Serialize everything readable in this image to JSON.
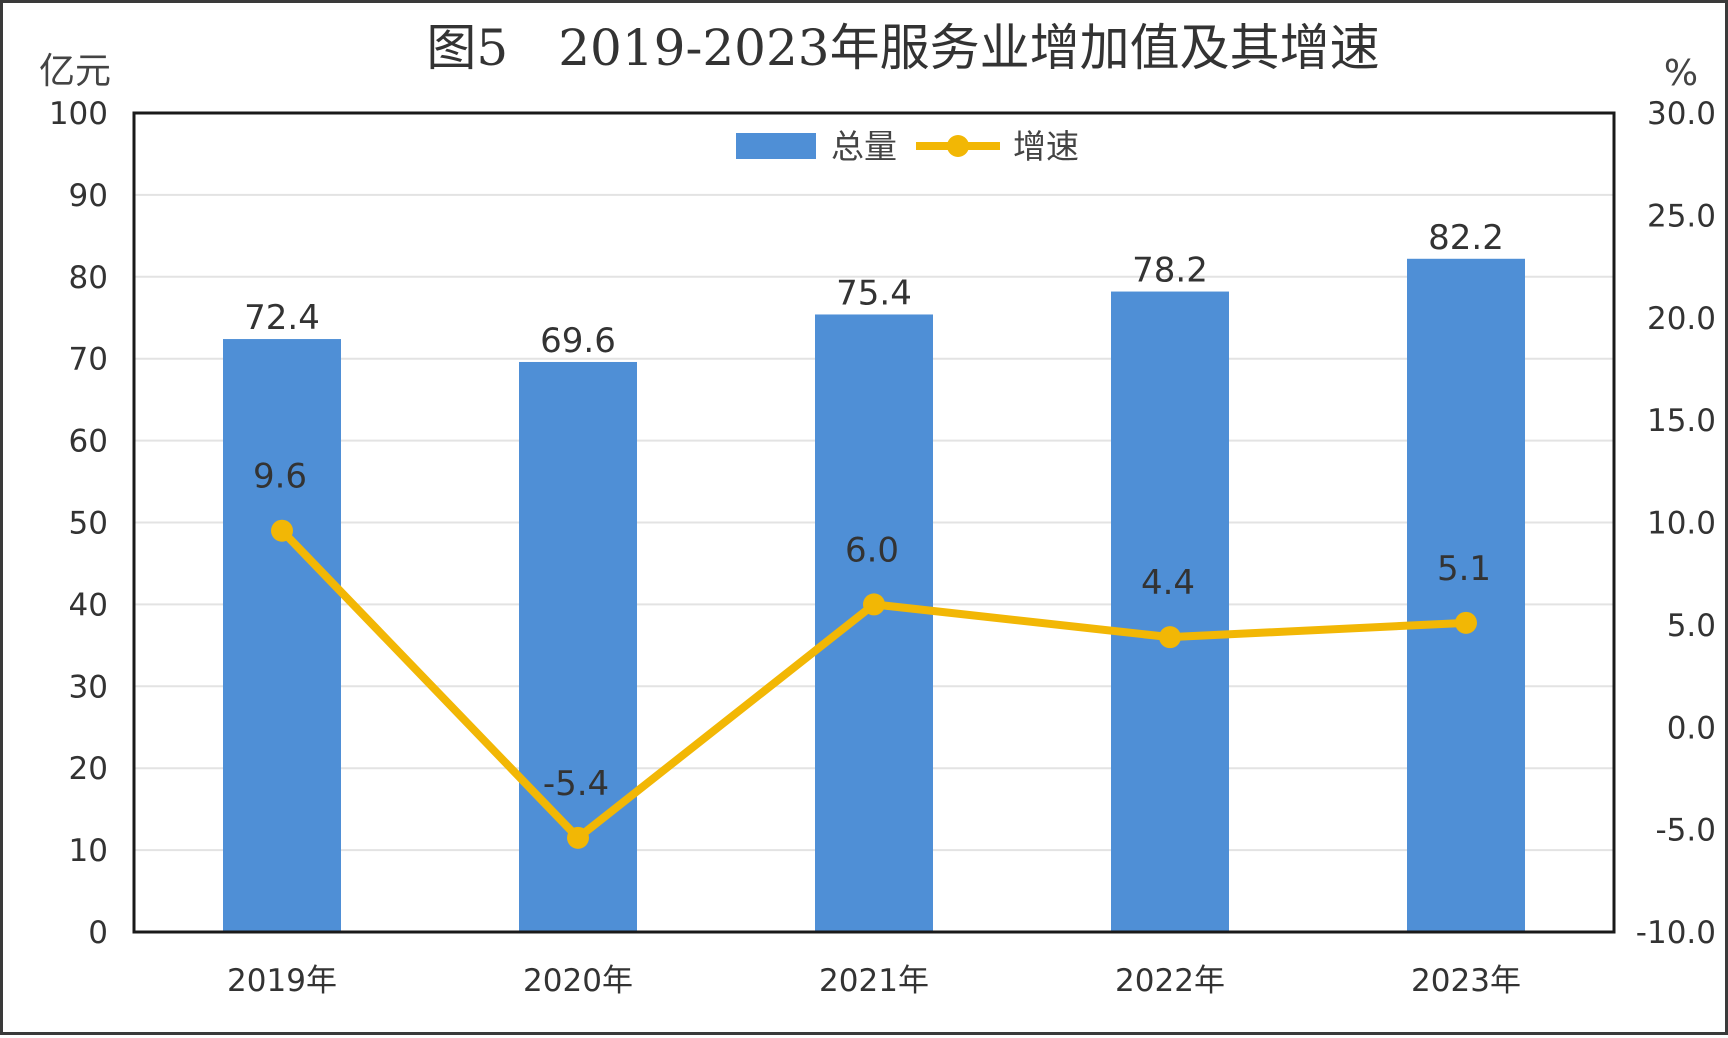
{
  "chart_data": {
    "type": "bar",
    "title": "图5　2019-2023年服务业增加值及其增速",
    "y_unit_left": "亿元",
    "y_unit_right": "%",
    "categories": [
      "2019年",
      "2020年",
      "2021年",
      "2022年",
      "2023年"
    ],
    "series": [
      {
        "name": "总量",
        "type": "bar",
        "axis": "left",
        "color": "#4F8FD6",
        "values": [
          72.4,
          69.6,
          75.4,
          78.2,
          82.2
        ],
        "labels": [
          "72.4",
          "69.6",
          "75.4",
          "78.2",
          "82.2"
        ]
      },
      {
        "name": "增速",
        "type": "line",
        "axis": "right",
        "color": "#F2B705",
        "values": [
          9.6,
          -5.4,
          6.0,
          4.4,
          5.1
        ],
        "labels": [
          "9.6",
          "-5.4",
          "6.0",
          "4.4",
          "5.1"
        ]
      }
    ],
    "ylim_left": [
      0,
      100
    ],
    "yticks_left": [
      "0",
      "10",
      "20",
      "30",
      "40",
      "50",
      "60",
      "70",
      "80",
      "90",
      "100"
    ],
    "ylim_right": [
      -10,
      30
    ],
    "yticks_right": [
      "-10.0",
      "-5.0",
      "0.0",
      "5.0",
      "10.0",
      "15.0",
      "20.0",
      "25.0",
      "30.0"
    ],
    "grid": true,
    "legend_position": "top-center"
  }
}
